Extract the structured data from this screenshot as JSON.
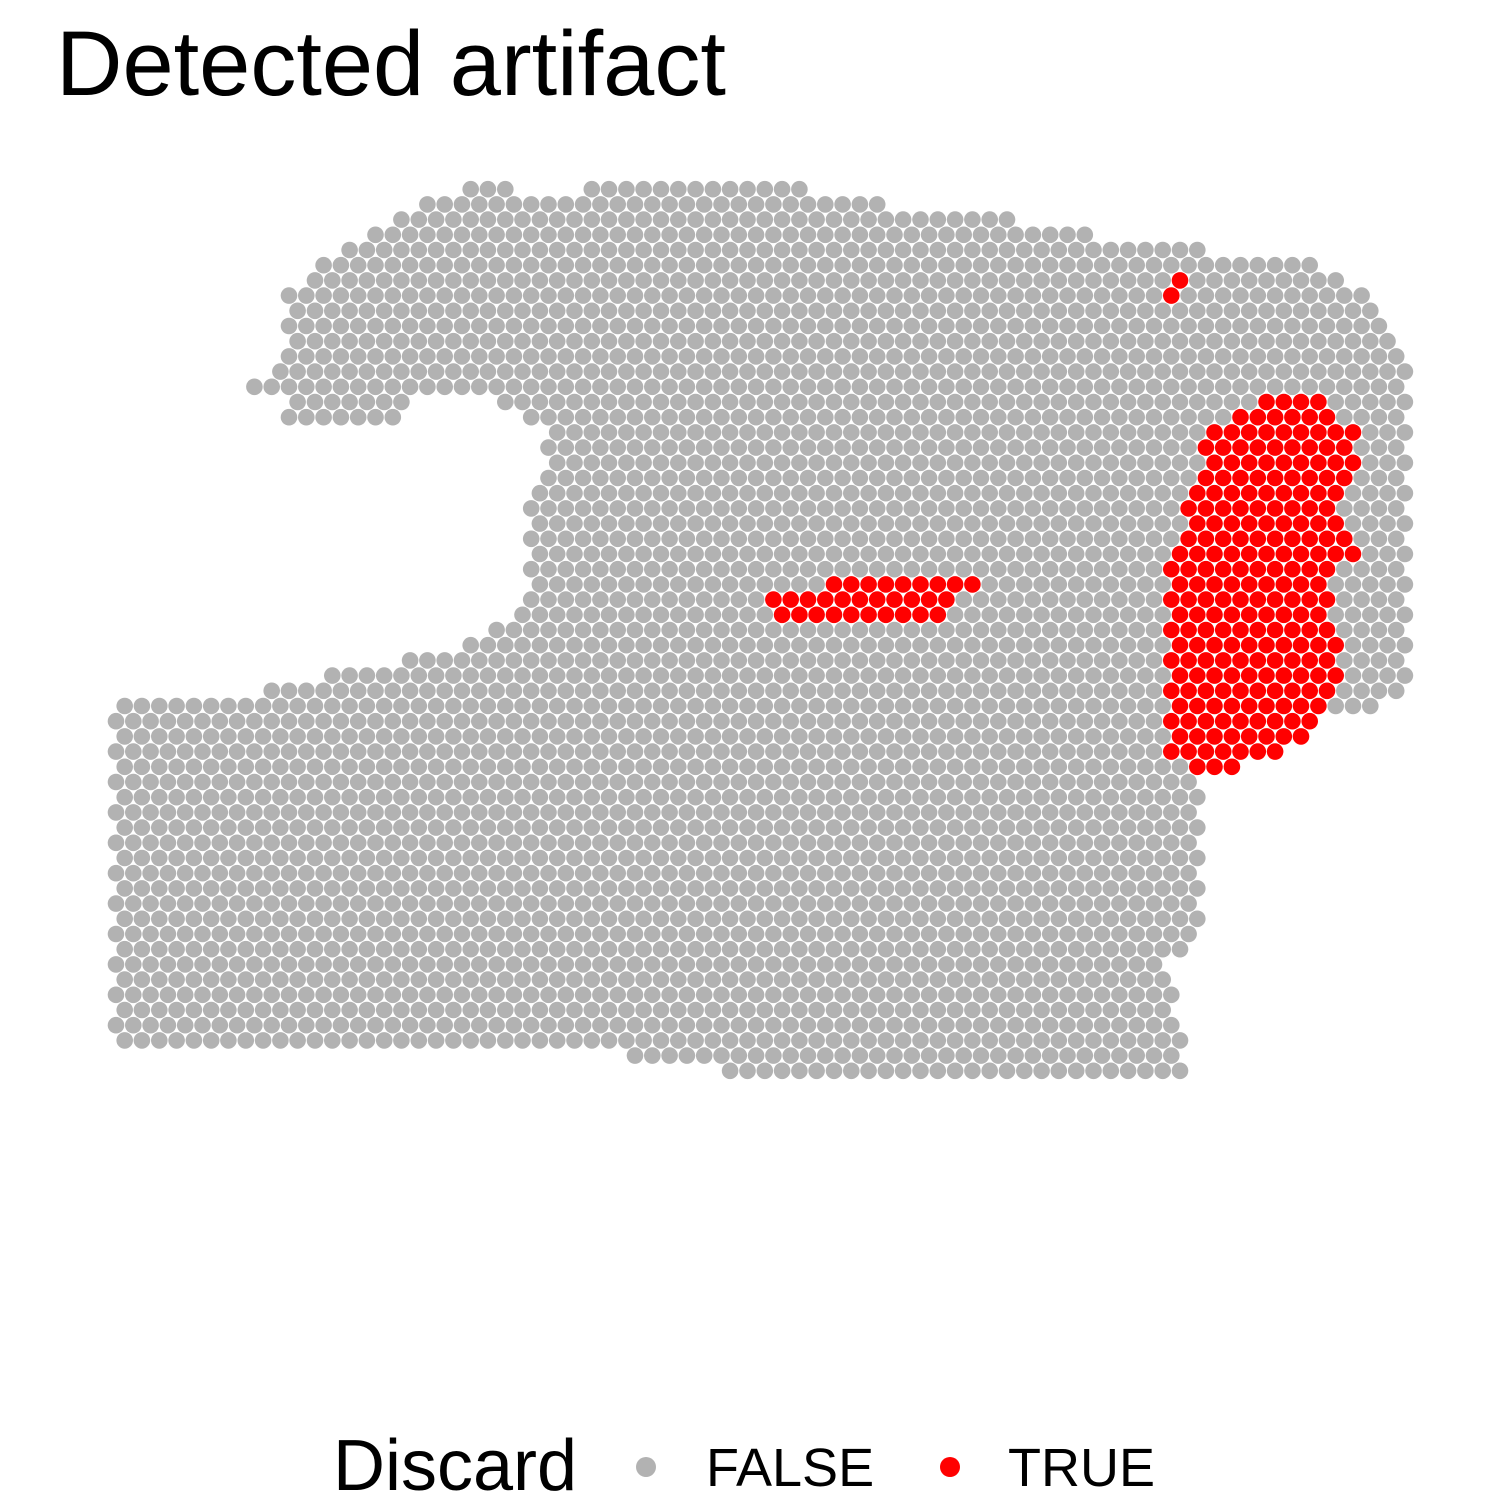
{
  "chart_data": {
    "type": "scatter",
    "title": "Detected artifact",
    "legend": {
      "title": "Discard",
      "position": "bottom",
      "entries": [
        {
          "label": "FALSE",
          "color": "#B2B2B2"
        },
        {
          "label": "TRUE",
          "color": "#FF0000"
        }
      ]
    },
    "grid": false,
    "axes_visible": false,
    "spot_grid": {
      "layout": "hexagonal",
      "columns": 75,
      "rows": 77
    },
    "regions": {
      "tissue_outline": [
        [
          17,
          57
        ],
        [
          22,
          58
        ],
        [
          30,
          58
        ],
        [
          35,
          59
        ],
        [
          45,
          60
        ],
        [
          52,
          60
        ],
        [
          62,
          59
        ],
        [
          61,
          52
        ],
        [
          63,
          50
        ],
        [
          63,
          40
        ],
        [
          66,
          38
        ],
        [
          66,
          36
        ],
        [
          72,
          36
        ],
        [
          75,
          34
        ],
        [
          76,
          30
        ],
        [
          77,
          30
        ],
        [
          77,
          14
        ],
        [
          74,
          11
        ],
        [
          73,
          8
        ],
        [
          70,
          6
        ],
        [
          63,
          5
        ],
        [
          57,
          4
        ],
        [
          52,
          3
        ],
        [
          45,
          2
        ],
        [
          40,
          1
        ],
        [
          36,
          0
        ],
        [
          27,
          1
        ],
        [
          24,
          2
        ],
        [
          22,
          0
        ],
        [
          18,
          2
        ],
        [
          15,
          4
        ],
        [
          12,
          6
        ],
        [
          10,
          8
        ],
        [
          10,
          12
        ],
        [
          8,
          14
        ],
        [
          10,
          15
        ],
        [
          10,
          16
        ],
        [
          13,
          17
        ],
        [
          16,
          17
        ],
        [
          17,
          15
        ],
        [
          22,
          15
        ],
        [
          25,
          17
        ],
        [
          25,
          20
        ],
        [
          24,
          22
        ],
        [
          24,
          26
        ],
        [
          23,
          29
        ],
        [
          20,
          31
        ],
        [
          17,
          32
        ],
        [
          12,
          33
        ],
        [
          9,
          34
        ],
        [
          5,
          35
        ],
        [
          0,
          35
        ],
        [
          0,
          57
        ],
        [
          6,
          58
        ],
        [
          12,
          58
        ]
      ],
      "discard_regions": [
        [
          [
            63,
            17
          ],
          [
            66,
            15
          ],
          [
            70,
            15
          ],
          [
            72,
            17
          ],
          [
            71,
            22
          ],
          [
            72,
            25
          ],
          [
            70,
            27
          ],
          [
            71,
            33
          ],
          [
            70,
            36
          ],
          [
            68,
            38
          ],
          [
            65,
            39
          ],
          [
            63,
            40
          ],
          [
            61,
            38
          ],
          [
            61,
            33
          ],
          [
            61,
            26
          ],
          [
            62,
            22
          ],
          [
            63,
            19
          ]
        ],
        [
          [
            38,
            28
          ],
          [
            41,
            27
          ],
          [
            44,
            27
          ],
          [
            48,
            26
          ],
          [
            50,
            27
          ],
          [
            48,
            29
          ],
          [
            45,
            30
          ],
          [
            42,
            29
          ],
          [
            40,
            30
          ],
          [
            38,
            29
          ]
        ],
        [
          [
            61,
            7
          ],
          [
            62,
            7
          ],
          [
            62,
            9
          ],
          [
            61,
            9
          ]
        ]
      ]
    }
  }
}
